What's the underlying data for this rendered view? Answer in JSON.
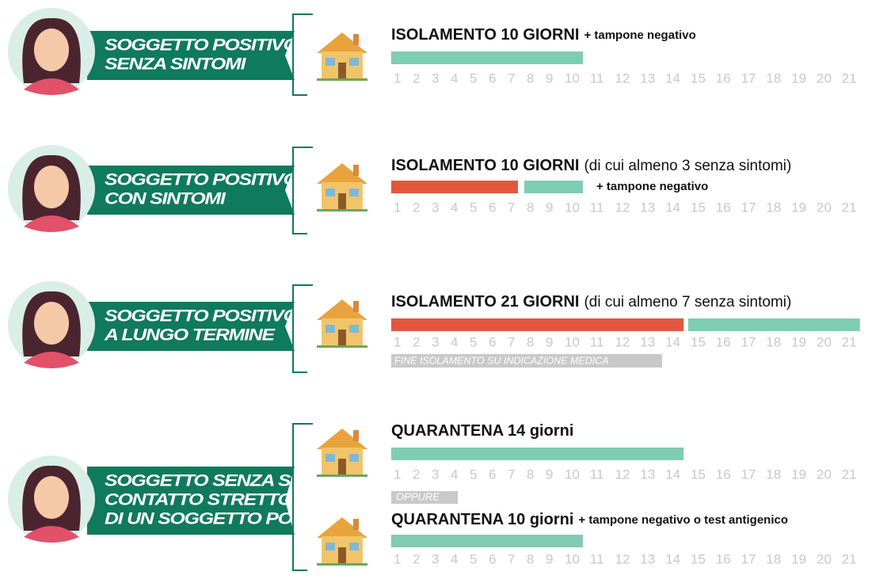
{
  "days": [
    1,
    2,
    3,
    4,
    5,
    6,
    7,
    8,
    9,
    10,
    11,
    12,
    13,
    14,
    15,
    16,
    17,
    18,
    19,
    20,
    21
  ],
  "rows": [
    {
      "label_lines": [
        "SOGGETTO POSITIVO",
        "SENZA SINTOMI"
      ],
      "plans": [
        {
          "title": "ISOLAMENTO 10 GIORNI",
          "title_note": "+ tampone negativo",
          "segments": [
            {
              "from": 1,
              "to": 10,
              "color": "#7fcdb2"
            }
          ]
        }
      ]
    },
    {
      "label_lines": [
        "SOGGETTO POSITIVO",
        "CON SINTOMI"
      ],
      "plans": [
        {
          "title": "ISOLAMENTO 10 GIORNI",
          "detail": "(di cui almeno 3 senza sintomi)",
          "bar_note": "+ tampone negativo",
          "segments": [
            {
              "from": 1,
              "to": 7,
              "color": "#e3573e"
            },
            {
              "from": 8,
              "to": 10,
              "color": "#7fcdb2"
            }
          ]
        }
      ]
    },
    {
      "label_lines": [
        "SOGGETTO POSITIVO",
        "A LUNGO TERMINE"
      ],
      "plans": [
        {
          "title": "ISOLAMENTO 21 GIORNI",
          "detail": "(di cui almeno 7 senza sintomi)",
          "segments": [
            {
              "from": 1,
              "to": 14,
              "color": "#e3573e"
            },
            {
              "from": 15,
              "to": 21,
              "color": "#7fcdb2"
            }
          ],
          "remark": "FINE ISOLAMENTO SU INDICAZIONE MEDICA"
        }
      ]
    },
    {
      "label_lines": [
        "SOGGETTO SENZA SINTOMI",
        "CONTATTO STRETTO",
        "DI UN SOGGETTO POSITIVO"
      ],
      "separator": "OPPURE",
      "plans": [
        {
          "title": "QUARANTENA 14 giorni",
          "segments": [
            {
              "from": 1,
              "to": 14,
              "color": "#7fcdb2"
            }
          ]
        },
        {
          "title": "QUARANTENA 10 giorni",
          "title_note": "+ tampone negativo o test antigenico",
          "segments": [
            {
              "from": 1,
              "to": 10,
              "color": "#7fcdb2"
            }
          ]
        }
      ]
    }
  ]
}
